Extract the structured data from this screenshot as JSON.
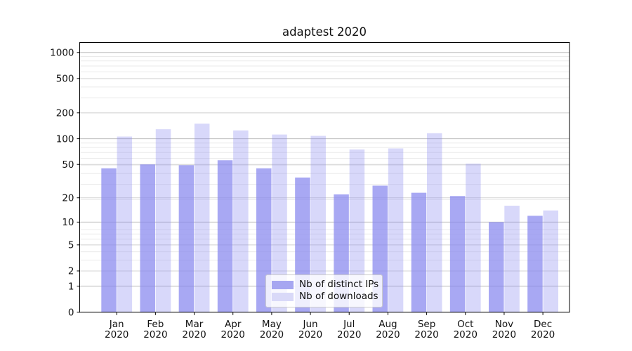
{
  "chart_data": {
    "type": "bar",
    "title": "adaptest 2020",
    "categories": [
      "Jan 2020",
      "Feb 2020",
      "Mar 2020",
      "Apr 2020",
      "May 2020",
      "Jun 2020",
      "Jul 2020",
      "Aug 2020",
      "Sep 2020",
      "Oct 2020",
      "Nov 2020",
      "Dec 2020"
    ],
    "series": [
      {
        "name": "Nb of distinct IPs",
        "color": "#a6a6f1",
        "fill": "rgba(134,134,238,0.72)",
        "values": [
          45,
          50,
          49,
          56,
          45,
          35,
          22,
          28,
          23,
          21,
          10,
          12
        ]
      },
      {
        "name": "Nb of downloads",
        "color": "#d9d9f8",
        "fill": "rgba(134,134,238,0.32)",
        "values": [
          106,
          129,
          150,
          125,
          112,
          108,
          75,
          77,
          116,
          51,
          16,
          14
        ]
      }
    ],
    "yscale": "log1p",
    "yticks": [
      0,
      1,
      2,
      5,
      10,
      20,
      50,
      100,
      200,
      500,
      1000
    ],
    "ylim": [
      0,
      1300
    ],
    "xlabel": "",
    "ylabel": "",
    "grid": "both",
    "legend_position": "lower center",
    "colors": {
      "grid_major_decade": "#bdbdbd",
      "grid_major": "#d4d4d4",
      "grid_minor": "#eaeaea",
      "spine": "#000000",
      "text": "#111111"
    }
  }
}
